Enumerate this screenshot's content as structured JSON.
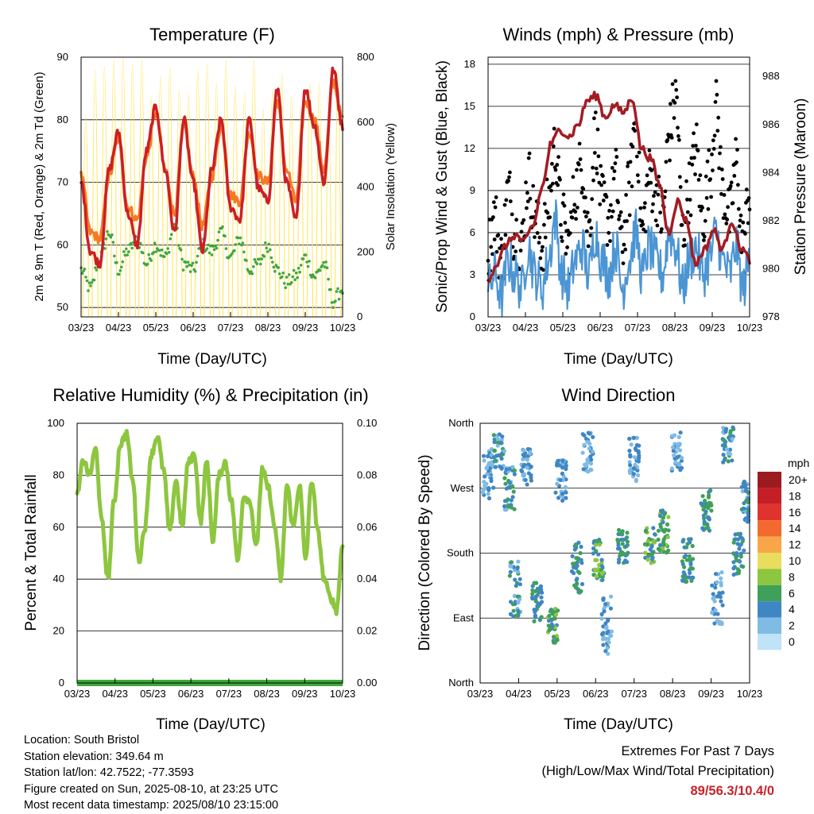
{
  "x_ticks": [
    "03/23",
    "04/23",
    "05/23",
    "06/23",
    "07/23",
    "08/23",
    "09/23",
    "10/23"
  ],
  "x_axis_label": "Time (Day/UTC)",
  "colors": {
    "temp_2m": "#cc1f24",
    "temp_9m": "#f47a26",
    "dewpoint": "#3fa83c",
    "insolation": "#ffe34a",
    "wind": "#4c95d4",
    "gust": "#000000",
    "pressure": "#a21c22",
    "humidity": "#8dc63f",
    "precip": "#3fa83c",
    "extremes": "#c8222a"
  },
  "chart_data": [
    {
      "id": "temperature",
      "type": "line",
      "title": "Temperature (F)",
      "ylabel": "2m & 9m T (Red, Orange) & 2m Td (Green)",
      "y2label": "Solar Insolation (Yellow)",
      "ylim": [
        48.5,
        90
      ],
      "y_ticks": [
        50,
        60,
        70,
        80,
        90
      ],
      "y2lim": [
        0,
        800
      ],
      "y2_ticks": [
        0,
        200,
        400,
        600,
        800
      ],
      "grid": true,
      "series": [
        {
          "key": "temp_2m",
          "values": [
            70,
            59,
            57,
            72,
            78,
            65,
            60,
            75,
            82,
            72,
            62,
            80,
            70,
            59,
            72,
            80,
            66,
            64,
            80,
            69,
            67,
            85,
            70,
            64,
            85,
            79,
            70,
            88,
            79
          ]
        },
        {
          "key": "temp_9m",
          "values": [
            71,
            62,
            61,
            71,
            77,
            66,
            64,
            74,
            81,
            72,
            65,
            79,
            71,
            63,
            71,
            79,
            68,
            67,
            78,
            71,
            70,
            83,
            72,
            67,
            83,
            80,
            72,
            86,
            80
          ]
        },
        {
          "key": "dewpoint",
          "values": [
            56,
            53,
            58,
            62,
            56,
            59,
            61,
            57,
            60,
            58,
            63,
            57,
            56,
            60,
            59,
            62,
            58,
            61,
            56,
            57,
            60,
            56,
            54,
            55,
            58,
            55,
            57,
            51,
            53
          ]
        },
        {
          "key": "insolation",
          "peaks": [
            620,
            760,
            770,
            790,
            800,
            780,
            790,
            680,
            740,
            770,
            700,
            690,
            760,
            780,
            720,
            790,
            710,
            690,
            790,
            640,
            700,
            750,
            680,
            650,
            720,
            720,
            610,
            760
          ]
        }
      ]
    },
    {
      "id": "winds",
      "type": "line",
      "title": "Winds (mph) & Pressure (mb)",
      "ylabel": "Sonic/Prop Wind & Gust (Blue, Black)",
      "y2label": "Station Pressure (Maroon)",
      "ylim": [
        0,
        18.5
      ],
      "y_ticks": [
        0,
        3,
        6,
        9,
        12,
        15,
        18
      ],
      "y2lim": [
        978,
        988.8
      ],
      "y2_ticks": [
        978,
        980,
        982,
        984,
        986,
        988
      ],
      "grid": true,
      "series": [
        {
          "key": "pressure",
          "values": [
            979.6,
            980.2,
            981.0,
            981.4,
            981.1,
            981.8,
            983.4,
            985.2,
            985.8,
            985.5,
            986.0,
            987.0,
            987.2,
            986.3,
            986.8,
            986.5,
            987.1,
            985.0,
            984.6,
            983.5,
            981.5,
            982.8,
            982.0,
            980.2,
            980.8,
            981.6,
            980.8,
            982.0,
            980.9,
            980.4
          ]
        },
        {
          "key": "wind",
          "values": [
            2,
            3,
            1.5,
            4,
            3,
            2,
            5,
            3,
            2,
            4,
            7,
            3,
            2,
            4,
            5,
            3,
            6,
            4,
            3,
            5,
            2,
            4,
            6,
            3,
            5,
            4,
            3,
            6,
            5,
            2,
            4,
            5,
            3,
            4,
            6,
            4,
            3,
            5,
            2,
            4
          ]
        },
        {
          "key": "gust",
          "values": [
            5,
            7,
            4,
            9,
            6,
            5,
            10,
            7,
            5,
            8,
            12,
            7,
            5,
            9,
            11,
            6,
            13,
            8,
            7,
            10,
            5,
            9,
            14,
            6,
            10,
            9,
            7,
            13,
            16,
            6,
            9,
            12,
            7,
            10,
            15,
            9,
            7,
            11,
            5,
            9
          ]
        }
      ]
    },
    {
      "id": "humidity",
      "type": "line",
      "title": "Relative Humidity (%) & Precipitation (in)",
      "ylabel": "Percent & Total Rainfall",
      "ylim": [
        0,
        100
      ],
      "y_ticks": [
        0,
        20,
        40,
        60,
        80,
        100
      ],
      "y2lim": [
        0,
        0.1
      ],
      "y2_ticks": [
        "0.00",
        "0.02",
        "0.04",
        "0.06",
        "0.08",
        "0.10"
      ],
      "grid": true,
      "series": [
        {
          "key": "humidity",
          "values": [
            72,
            86,
            80,
            90,
            62,
            40,
            70,
            92,
            96,
            78,
            47,
            60,
            88,
            95,
            82,
            58,
            78,
            60,
            85,
            88,
            62,
            85,
            55,
            80,
            85,
            70,
            47,
            72,
            70,
            52,
            82,
            75,
            60,
            40,
            76,
            60,
            76,
            48,
            78,
            58,
            40,
            33,
            28,
            53
          ]
        },
        {
          "key": "precip",
          "values": [
            0,
            0
          ]
        }
      ]
    },
    {
      "id": "wind_direction",
      "type": "scatter",
      "title": "Wind Direction",
      "ylabel": "Direction (Colored By Speed)",
      "y_ticks": [
        "North",
        "East",
        "South",
        "West",
        "North"
      ],
      "ylim": [
        0,
        360
      ],
      "grid": true,
      "legend": {
        "title": "mph",
        "position": "right",
        "labels": [
          "20+",
          "18",
          "16",
          "14",
          "12",
          "10",
          "8",
          "6",
          "4",
          "2",
          "0"
        ],
        "colors": [
          "#9c1b1f",
          "#c41e26",
          "#e0332d",
          "#f26a2e",
          "#f8a648",
          "#e8dd5c",
          "#8dc63f",
          "#3fa05a",
          "#3f86c4",
          "#7fbbe4",
          "#bfe3f7"
        ]
      },
      "clusters": [
        {
          "x": 0.03,
          "dir": 290,
          "spread": 35,
          "speed": 3
        },
        {
          "x": 0.07,
          "dir": 320,
          "spread": 25,
          "speed": 4
        },
        {
          "x": 0.11,
          "dir": 270,
          "spread": 30,
          "speed": 4
        },
        {
          "x": 0.13,
          "dir": 130,
          "spread": 40,
          "speed": 4
        },
        {
          "x": 0.17,
          "dir": 300,
          "spread": 25,
          "speed": 3
        },
        {
          "x": 0.21,
          "dir": 110,
          "spread": 30,
          "speed": 5
        },
        {
          "x": 0.27,
          "dir": 80,
          "spread": 25,
          "speed": 6
        },
        {
          "x": 0.3,
          "dir": 280,
          "spread": 30,
          "speed": 3
        },
        {
          "x": 0.36,
          "dir": 160,
          "spread": 35,
          "speed": 5
        },
        {
          "x": 0.4,
          "dir": 320,
          "spread": 30,
          "speed": 3
        },
        {
          "x": 0.44,
          "dir": 170,
          "spread": 30,
          "speed": 6
        },
        {
          "x": 0.47,
          "dir": 80,
          "spread": 40,
          "speed": 3
        },
        {
          "x": 0.53,
          "dir": 190,
          "spread": 25,
          "speed": 5
        },
        {
          "x": 0.57,
          "dir": 310,
          "spread": 30,
          "speed": 3
        },
        {
          "x": 0.63,
          "dir": 190,
          "spread": 25,
          "speed": 6
        },
        {
          "x": 0.68,
          "dir": 210,
          "spread": 30,
          "speed": 6
        },
        {
          "x": 0.73,
          "dir": 320,
          "spread": 30,
          "speed": 3
        },
        {
          "x": 0.77,
          "dir": 170,
          "spread": 30,
          "speed": 5
        },
        {
          "x": 0.84,
          "dir": 240,
          "spread": 30,
          "speed": 5
        },
        {
          "x": 0.88,
          "dir": 120,
          "spread": 40,
          "speed": 3
        },
        {
          "x": 0.92,
          "dir": 330,
          "spread": 25,
          "speed": 4
        },
        {
          "x": 0.96,
          "dir": 180,
          "spread": 30,
          "speed": 5
        },
        {
          "x": 0.99,
          "dir": 250,
          "spread": 30,
          "speed": 4
        }
      ]
    }
  ],
  "station_info": {
    "location": "Location: South Bristol",
    "elevation": "Station elevation: 349.64 m",
    "latlon": "Station lat/lon: 42.7522; -77.3593",
    "created": "Figure created on Sun, 2025-08-10, at 23:25 UTC",
    "recent": "Most recent data timestamp: 2025/08/10 23:15:00"
  },
  "extremes": {
    "line1": "Extremes For Past 7 Days",
    "line2": "(High/Low/Max Wind/Total Precipitation)",
    "values": "89/56.3/10.4/0"
  }
}
